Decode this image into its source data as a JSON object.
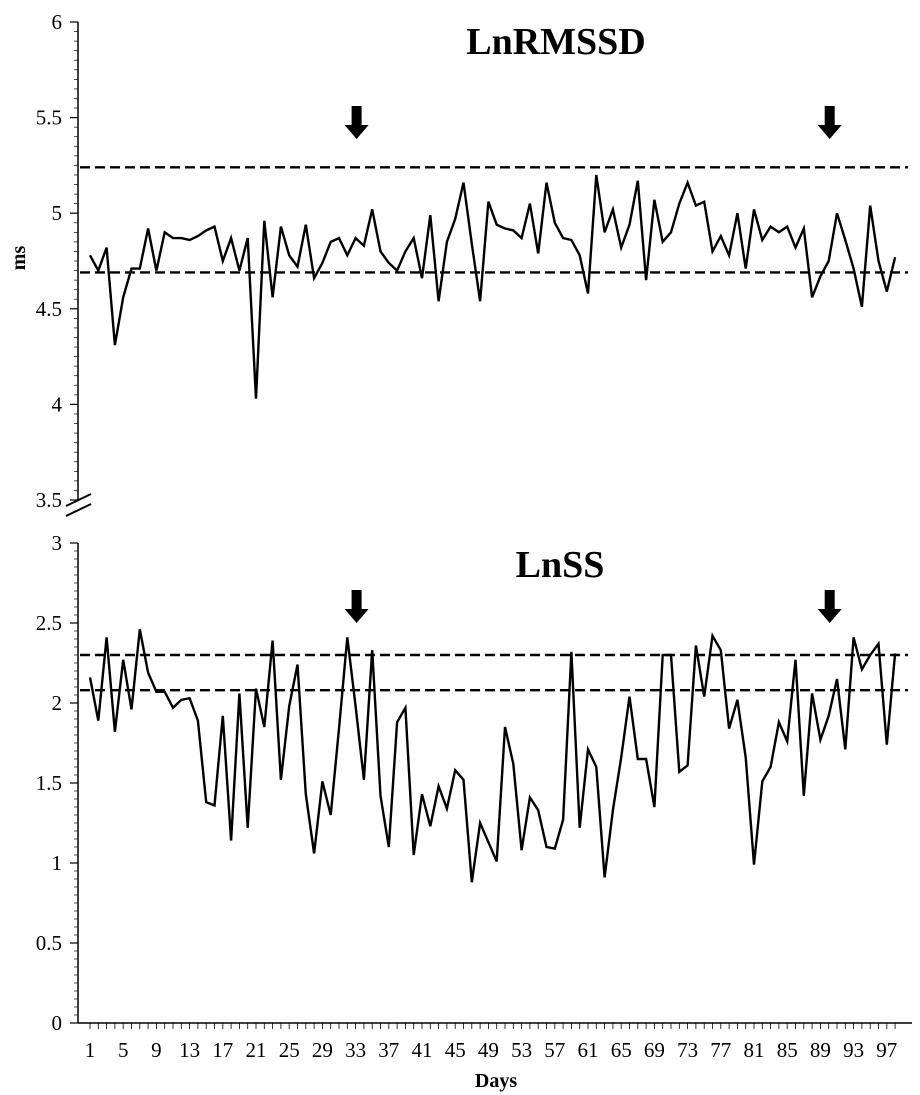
{
  "chart_data": [
    {
      "type": "line",
      "title": "LnRMSSD",
      "ylabel": "ms",
      "xlabel": "",
      "ylim": [
        3.5,
        6
      ],
      "yticks": [
        "3.5",
        "4",
        "4.5",
        "5",
        "5.5",
        "6"
      ],
      "grid": false,
      "reference_lines": [
        4.69,
        5.24
      ],
      "arrows_at_day": [
        33,
        90
      ],
      "x_start": 1,
      "series": [
        {
          "values": [
            4.78,
            4.7,
            4.82,
            4.31,
            4.56,
            4.71,
            4.71,
            4.92,
            4.7,
            4.9,
            4.87,
            4.87,
            4.86,
            4.88,
            4.91,
            4.93,
            4.75,
            4.87,
            4.7,
            4.87,
            4.03,
            4.96,
            4.56,
            4.93,
            4.78,
            4.72,
            4.94,
            4.66,
            4.74,
            4.85,
            4.87,
            4.78,
            4.87,
            4.83,
            5.02,
            4.8,
            4.74,
            4.7,
            4.8,
            4.87,
            4.66,
            4.99,
            4.54,
            4.85,
            4.97,
            5.16,
            4.84,
            4.54,
            5.06,
            4.94,
            4.92,
            4.91,
            4.87,
            5.05,
            4.79,
            5.16,
            4.95,
            4.87,
            4.86,
            4.78,
            4.58,
            5.2,
            4.9,
            5.02,
            4.82,
            4.94,
            5.17,
            4.65,
            5.07,
            4.85,
            4.9,
            5.05,
            5.16,
            5.04,
            5.06,
            4.8,
            4.88,
            4.78,
            5.0,
            4.71,
            5.02,
            4.86,
            4.93,
            4.9,
            4.93,
            4.82,
            4.92,
            4.56,
            4.67,
            4.75,
            5.0,
            4.86,
            4.71,
            4.51,
            5.04,
            4.75,
            4.59,
            4.77
          ]
        }
      ]
    },
    {
      "type": "line",
      "title": "LnSS",
      "xlabel": "Days",
      "ylabel": "",
      "ylim": [
        0,
        3
      ],
      "yticks": [
        "0",
        "0.5",
        "1",
        "1.5",
        "2",
        "2.5",
        "3"
      ],
      "grid": false,
      "reference_lines": [
        2.08,
        2.3
      ],
      "arrows_at_day": [
        33,
        90
      ],
      "x_start": 1,
      "xticks": [
        "1",
        "5",
        "9",
        "13",
        "17",
        "21",
        "25",
        "29",
        "33",
        "37",
        "41",
        "45",
        "49",
        "53",
        "57",
        "61",
        "65",
        "69",
        "73",
        "77",
        "81",
        "85",
        "89",
        "93",
        "97"
      ],
      "series": [
        {
          "values": [
            2.16,
            1.89,
            2.41,
            1.82,
            2.27,
            1.96,
            2.46,
            2.19,
            2.07,
            2.07,
            1.97,
            2.02,
            2.03,
            1.89,
            1.38,
            1.36,
            1.92,
            1.14,
            2.06,
            1.22,
            2.09,
            1.85,
            2.39,
            1.52,
            1.98,
            2.24,
            1.43,
            1.06,
            1.51,
            1.3,
            1.84,
            2.41,
            1.98,
            1.52,
            2.33,
            1.42,
            1.1,
            1.88,
            1.97,
            1.05,
            1.43,
            1.23,
            1.48,
            1.34,
            1.58,
            1.52,
            0.88,
            1.25,
            1.13,
            1.01,
            1.85,
            1.62,
            1.08,
            1.41,
            1.33,
            1.1,
            1.09,
            1.27,
            2.32,
            1.22,
            1.71,
            1.6,
            0.91,
            1.33,
            1.66,
            2.04,
            1.65,
            1.65,
            1.35,
            2.3,
            2.3,
            1.57,
            1.61,
            2.36,
            2.04,
            2.42,
            2.33,
            1.84,
            2.02,
            1.66,
            0.99,
            1.51,
            1.6,
            1.88,
            1.76,
            2.27,
            1.42,
            2.06,
            1.77,
            1.92,
            2.15,
            1.71,
            2.41,
            2.21,
            2.3,
            2.37,
            1.74,
            2.31
          ]
        }
      ]
    }
  ]
}
